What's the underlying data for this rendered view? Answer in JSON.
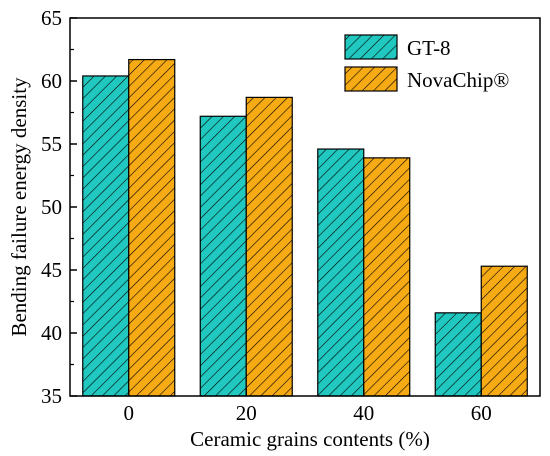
{
  "chart_data": {
    "type": "bar",
    "categories": [
      "0",
      "20",
      "40",
      "60"
    ],
    "series": [
      {
        "name": "GT-8",
        "values": [
          60.4,
          57.2,
          54.6,
          41.6
        ],
        "color": "#20c8c0"
      },
      {
        "name": "NovaChip®",
        "values": [
          61.7,
          58.7,
          53.9,
          45.3
        ],
        "color": "#f6aa14"
      }
    ],
    "xlabel": "Ceramic grains contents (%)",
    "ylabel": "Bending failure energy density",
    "ylim": [
      35,
      65
    ],
    "yticks": [
      35,
      40,
      45,
      50,
      55,
      60,
      65
    ],
    "hatch": "diagonal",
    "grid": false,
    "legend_position": "top-right"
  }
}
